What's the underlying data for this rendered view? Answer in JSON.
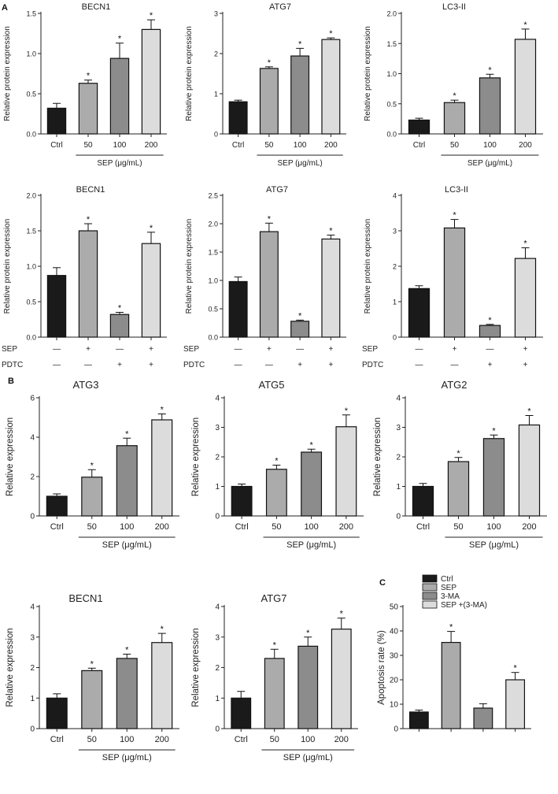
{
  "panel_labels": {
    "A": "A",
    "B": "B",
    "C": "C"
  },
  "colors": {
    "c0": "#1a1a1a",
    "c1": "#ababab",
    "c2": "#8c8c8c",
    "c3": "#dcdcdc",
    "axis": "#222222"
  },
  "chart_data": [
    {
      "id": "a1",
      "panel": "A",
      "type": "bar",
      "title": "BECN1",
      "ylabel": "Relative protein expression",
      "categories": [
        "Ctrl",
        "50",
        "100",
        "200"
      ],
      "values": [
        0.32,
        0.63,
        0.94,
        1.3
      ],
      "errors": [
        0.06,
        0.04,
        0.19,
        0.12
      ],
      "significant": [
        false,
        true,
        true,
        true
      ],
      "ylim": [
        0,
        1.5
      ],
      "yticks": [
        "0.0",
        "0.5",
        "1.0",
        "1.5"
      ],
      "group_label": "SEP (μg/mL)"
    },
    {
      "id": "a2",
      "panel": "A",
      "type": "bar",
      "title": "ATG7",
      "ylabel": "Relative protein expression",
      "categories": [
        "Ctrl",
        "50",
        "100",
        "200"
      ],
      "values": [
        0.8,
        1.63,
        1.94,
        2.35
      ],
      "errors": [
        0.04,
        0.04,
        0.19,
        0.04
      ],
      "significant": [
        false,
        true,
        true,
        true
      ],
      "ylim": [
        0,
        3
      ],
      "yticks": [
        "0",
        "1",
        "2",
        "3"
      ],
      "group_label": "SEP (μg/mL)"
    },
    {
      "id": "a3",
      "panel": "A",
      "type": "bar",
      "title": "LC3-II",
      "ylabel": "Relative protein expression",
      "categories": [
        "Ctrl",
        "50",
        "100",
        "200"
      ],
      "values": [
        0.23,
        0.52,
        0.93,
        1.57
      ],
      "errors": [
        0.03,
        0.04,
        0.06,
        0.17
      ],
      "significant": [
        false,
        true,
        true,
        true
      ],
      "ylim": [
        0,
        2.0
      ],
      "yticks": [
        "0.0",
        "0.5",
        "1.0",
        "1.5",
        "2.0"
      ],
      "group_label": "SEP (μg/mL)"
    },
    {
      "id": "a4",
      "panel": "A",
      "type": "bar",
      "title": "BECN1",
      "ylabel": "Relative protein expression",
      "categories": [
        "",
        "",
        "",
        ""
      ],
      "values": [
        0.87,
        1.5,
        0.32,
        1.32
      ],
      "errors": [
        0.11,
        0.1,
        0.03,
        0.16
      ],
      "significant": [
        false,
        true,
        true,
        true
      ],
      "ylim": [
        0,
        2.0
      ],
      "yticks": [
        "0.0",
        "0.5",
        "1.0",
        "1.5",
        "2.0"
      ],
      "treatments": [
        {
          "label": "SEP",
          "signs": [
            "—",
            "+",
            "—",
            "+"
          ]
        },
        {
          "label": "PDTC",
          "signs": [
            "—",
            "—",
            "+",
            "+"
          ]
        }
      ]
    },
    {
      "id": "a5",
      "panel": "A",
      "type": "bar",
      "title": "ATG7",
      "ylabel": "Relative protein expression",
      "categories": [
        "",
        "",
        "",
        ""
      ],
      "values": [
        0.98,
        1.86,
        0.28,
        1.73
      ],
      "errors": [
        0.08,
        0.15,
        0.02,
        0.07
      ],
      "significant": [
        false,
        true,
        true,
        true
      ],
      "ylim": [
        0,
        2.5
      ],
      "yticks": [
        "0.0",
        "0.5",
        "1.0",
        "1.5",
        "2.0",
        "2.5"
      ],
      "treatments": [
        {
          "label": "SEP",
          "signs": [
            "—",
            "+",
            "—",
            "+"
          ]
        },
        {
          "label": "PDTC",
          "signs": [
            "—",
            "—",
            "+",
            "+"
          ]
        }
      ]
    },
    {
      "id": "a6",
      "panel": "A",
      "type": "bar",
      "title": "LC3-II",
      "ylabel": "Relative protein expression",
      "categories": [
        "",
        "",
        "",
        ""
      ],
      "values": [
        1.37,
        3.08,
        0.33,
        2.22
      ],
      "errors": [
        0.08,
        0.24,
        0.03,
        0.3
      ],
      "significant": [
        false,
        true,
        true,
        true
      ],
      "ylim": [
        0,
        4
      ],
      "yticks": [
        "0",
        "1",
        "2",
        "3",
        "4"
      ],
      "treatments": [
        {
          "label": "SEP",
          "signs": [
            "—",
            "+",
            "—",
            "+"
          ]
        },
        {
          "label": "PDTC",
          "signs": [
            "—",
            "—",
            "+",
            "+"
          ]
        }
      ]
    },
    {
      "id": "b1",
      "panel": "B",
      "type": "bar",
      "title": "ATG3",
      "ylabel": "Relative expression",
      "categories": [
        "Ctrl",
        "50",
        "100",
        "200"
      ],
      "values": [
        1.0,
        1.97,
        3.57,
        4.88
      ],
      "errors": [
        0.12,
        0.38,
        0.38,
        0.3
      ],
      "significant": [
        false,
        true,
        true,
        true
      ],
      "ylim": [
        0,
        6
      ],
      "yticks": [
        "0",
        "2",
        "4",
        "6"
      ],
      "group_label": "SEP (μg/mL)"
    },
    {
      "id": "b2",
      "panel": "B",
      "type": "bar",
      "title": "ATG5",
      "ylabel": "Relative expression",
      "categories": [
        "Ctrl",
        "50",
        "100",
        "200"
      ],
      "values": [
        1.0,
        1.58,
        2.16,
        3.02
      ],
      "errors": [
        0.08,
        0.14,
        0.1,
        0.4
      ],
      "significant": [
        false,
        true,
        true,
        true
      ],
      "ylim": [
        0,
        4
      ],
      "yticks": [
        "0",
        "1",
        "2",
        "3",
        "4"
      ],
      "group_label": "SEP (μg/mL)"
    },
    {
      "id": "b3",
      "panel": "B",
      "type": "bar",
      "title": "ATG2",
      "ylabel": "Relative expression",
      "categories": [
        "Ctrl",
        "50",
        "100",
        "200"
      ],
      "values": [
        1.0,
        1.84,
        2.62,
        3.08
      ],
      "errors": [
        0.1,
        0.14,
        0.12,
        0.32
      ],
      "significant": [
        false,
        true,
        true,
        true
      ],
      "ylim": [
        0,
        4
      ],
      "yticks": [
        "0",
        "1",
        "2",
        "3",
        "4"
      ],
      "group_label": "SEP (μg/mL)"
    },
    {
      "id": "b4",
      "panel": "B",
      "type": "bar",
      "title": "BECN1",
      "ylabel": "Relative expression",
      "categories": [
        "Ctrl",
        "50",
        "100",
        "200"
      ],
      "values": [
        1.0,
        1.9,
        2.3,
        2.82
      ],
      "errors": [
        0.14,
        0.08,
        0.14,
        0.3
      ],
      "significant": [
        false,
        true,
        true,
        true
      ],
      "ylim": [
        0,
        4
      ],
      "yticks": [
        "0",
        "1",
        "2",
        "3",
        "4"
      ],
      "group_label": "SEP (μg/mL)"
    },
    {
      "id": "b5",
      "panel": "B",
      "type": "bar",
      "title": "ATG7",
      "ylabel": "Relative expression",
      "categories": [
        "Ctrl",
        "50",
        "100",
        "200"
      ],
      "values": [
        1.0,
        2.3,
        2.7,
        3.26
      ],
      "errors": [
        0.22,
        0.3,
        0.3,
        0.36
      ],
      "significant": [
        false,
        true,
        true,
        true
      ],
      "ylim": [
        0,
        4
      ],
      "yticks": [
        "0",
        "1",
        "2",
        "3",
        "4"
      ],
      "group_label": "SEP (μg/mL)"
    },
    {
      "id": "c1",
      "panel": "C",
      "type": "bar",
      "title": "",
      "ylabel": "Apoptosis rate (%)",
      "categories": [
        "",
        "",
        "",
        ""
      ],
      "values": [
        6.8,
        35.3,
        8.4,
        20.0
      ],
      "errors": [
        0.8,
        4.5,
        1.8,
        3.0
      ],
      "significant": [
        false,
        true,
        false,
        true
      ],
      "ylim": [
        0,
        50
      ],
      "yticks": [
        "0",
        "10",
        "20",
        "30",
        "40",
        "50"
      ],
      "legend": [
        "Ctrl",
        "SEP",
        "3-MA",
        "SEP +(3-MA)"
      ],
      "legend_position": "top-left"
    }
  ]
}
